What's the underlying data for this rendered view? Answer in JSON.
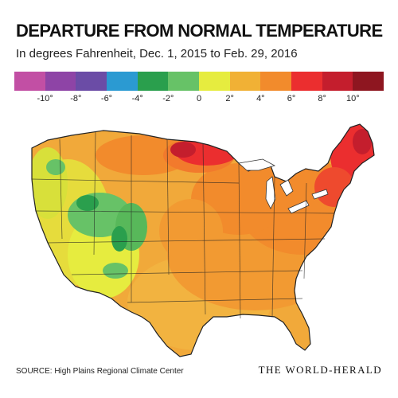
{
  "title": "DEPARTURE FROM NORMAL TEMPERATURE",
  "subtitle": "In degrees Fahrenheit, Dec. 1, 2015 to Feb. 29, 2016",
  "legend": {
    "colors": [
      "#c24fa4",
      "#8e44a6",
      "#6b4ca6",
      "#2b9ad2",
      "#2a9f4d",
      "#67c267",
      "#e6ec3f",
      "#f1b135",
      "#f28b2c",
      "#eb2e2f",
      "#c41e2d",
      "#8e1620"
    ],
    "ticks": [
      "-10°",
      "-8°",
      "-6°",
      "-4°",
      "-2°",
      "0",
      "2°",
      "4°",
      "6°",
      "8°",
      "10°"
    ]
  },
  "source": "SOURCE: High Plains Regional Climate Center",
  "brand": "THE WORLD-HERALD"
}
